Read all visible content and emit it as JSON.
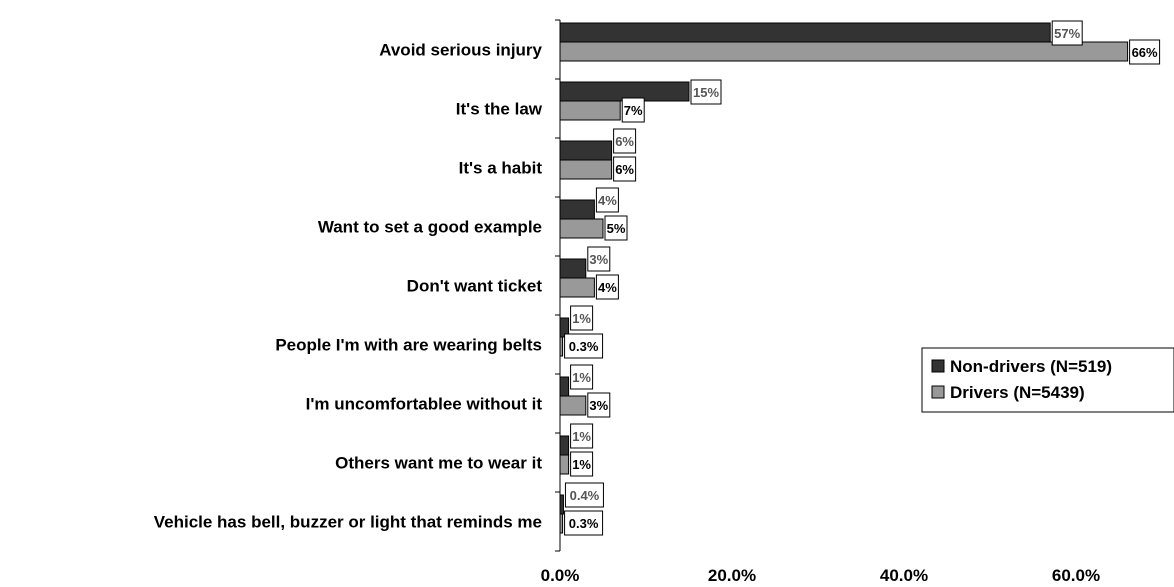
{
  "chart_data": {
    "type": "bar",
    "orientation": "horizontal",
    "categories": [
      "Avoid serious injury",
      "It's the law",
      "It's a habit",
      "Want to set a good example",
      "Don't want ticket",
      "People I'm with are wearing belts",
      "I'm uncomfortablee without it",
      "Others want me to wear it",
      "Vehicle has bell, buzzer or light that reminds me"
    ],
    "series": [
      {
        "name": "Non-drivers (N=519)",
        "color": "#333333",
        "values": [
          57,
          15,
          6,
          4,
          3,
          1,
          1,
          1,
          0.4
        ],
        "labels": [
          "57%",
          "15%",
          "6%",
          "4%",
          "3%",
          "1%",
          "1%",
          "1%",
          "0.4%"
        ]
      },
      {
        "name": "Drivers (N=5439)",
        "color": "#999999",
        "values": [
          66,
          7,
          6,
          5,
          4,
          0.3,
          3,
          1,
          0.3
        ],
        "labels": [
          "66%",
          "7%",
          "6%",
          "5%",
          "4%",
          "0.3%",
          "3%",
          "1%",
          "0.3%"
        ]
      }
    ],
    "x_ticks": [
      0,
      20,
      40,
      60
    ],
    "x_tick_labels": [
      "0.0%",
      "20.0%",
      "40.0%",
      "60.0%"
    ],
    "xlim": [
      0,
      70
    ],
    "title": "",
    "xlabel": "",
    "ylabel": "",
    "grid": false,
    "legend_position": "right"
  }
}
